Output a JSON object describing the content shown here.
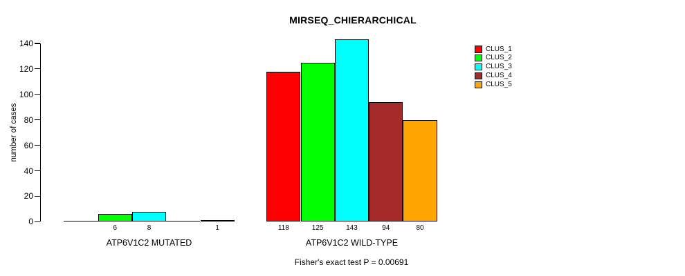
{
  "chart_data": {
    "type": "bar",
    "title": "MIRSEQ_CHIERARCHICAL",
    "ylabel": "number of cases",
    "xlabel": "",
    "categories": [
      "ATP6V1C2 MUTATED",
      "ATP6V1C2 WILD-TYPE"
    ],
    "series": [
      {
        "name": "CLUS_1",
        "color": "#FF0000",
        "values": [
          0,
          118
        ]
      },
      {
        "name": "CLUS_2",
        "color": "#00FF00",
        "values": [
          6,
          125
        ]
      },
      {
        "name": "CLUS_3",
        "color": "#00FFFF",
        "values": [
          8,
          143
        ]
      },
      {
        "name": "CLUS_4",
        "color": "#A52A2A",
        "values": [
          0,
          94
        ]
      },
      {
        "name": "CLUS_5",
        "color": "#FFA500",
        "values": [
          1,
          80
        ]
      }
    ],
    "ylim": [
      0,
      140
    ],
    "yticks": [
      0,
      20,
      40,
      60,
      80,
      100,
      120,
      140
    ],
    "bar_value_labels_shown": true,
    "zero_value_labels_hidden": true,
    "legend_position": "top-right",
    "grid": false,
    "bar_border_color": "#000000",
    "background_color": "#FFFFFF",
    "annotation": "Fisher's exact test P = 0.00691"
  }
}
